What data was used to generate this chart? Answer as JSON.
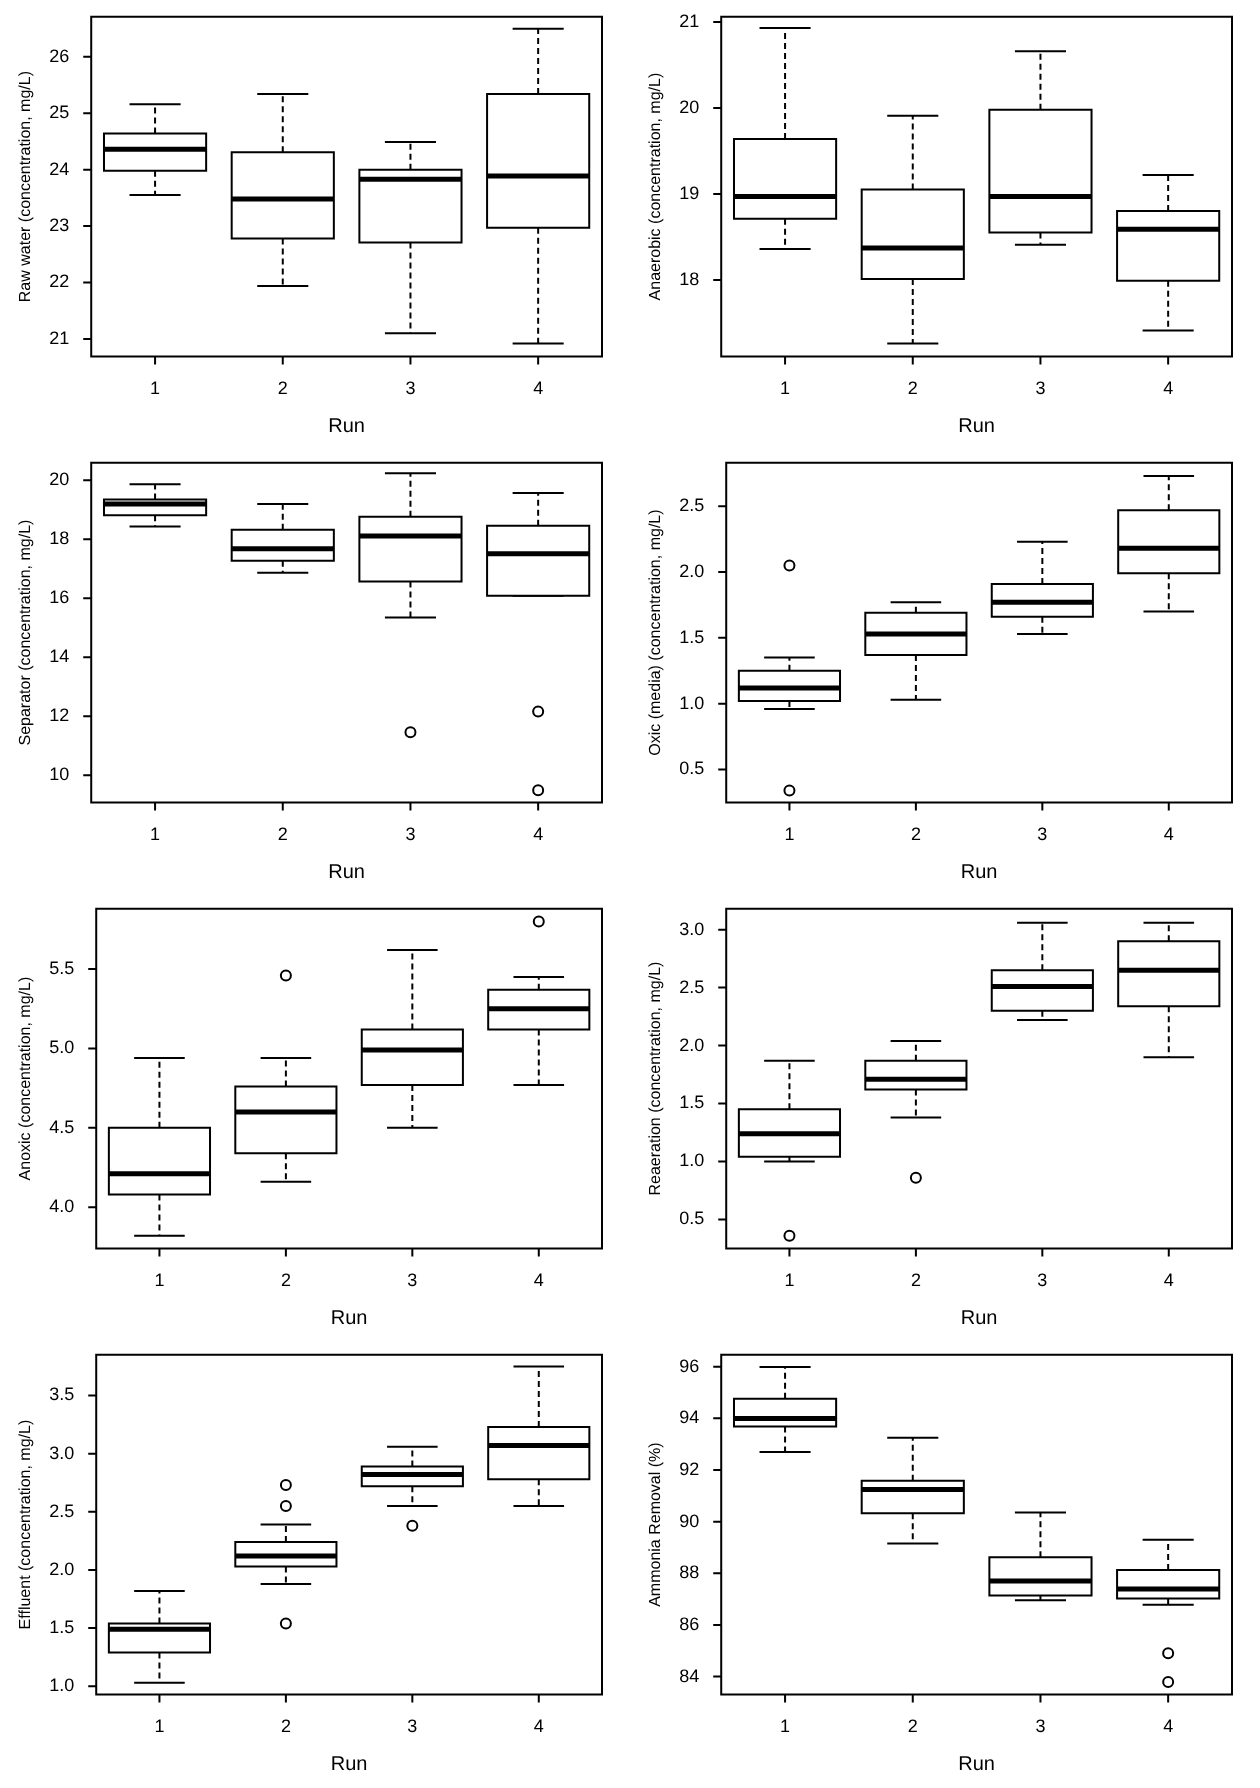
{
  "chart_data": [
    {
      "type": "box",
      "categories": [
        "1",
        "2",
        "3",
        "4"
      ],
      "xlabel": "Run",
      "ylabel": "Raw water (concentration, mg/L)",
      "ylim": [
        20.69,
        26.71
      ],
      "yticks": [
        21,
        22,
        23,
        24,
        25,
        26
      ],
      "boxes": [
        {
          "low": 23.55,
          "q1": 23.98,
          "median": 24.36,
          "q3": 24.64,
          "high": 25.16
        },
        {
          "low": 21.94,
          "q1": 22.78,
          "median": 23.48,
          "q3": 24.31,
          "high": 25.34
        },
        {
          "low": 21.1,
          "q1": 22.71,
          "median": 23.83,
          "q3": 24.0,
          "high": 24.49
        },
        {
          "low": 20.92,
          "q1": 22.97,
          "median": 23.89,
          "q3": 25.34,
          "high": 26.5
        }
      ]
    },
    {
      "type": "box",
      "categories": [
        "1",
        "2",
        "3",
        "4"
      ],
      "xlabel": "Run",
      "ylabel": "Anaerobic (concentration, mg/L)",
      "ylim": [
        17.11,
        21.06
      ],
      "yticks": [
        18,
        19,
        20,
        21
      ],
      "boxes": [
        {
          "low": 18.36,
          "q1": 18.71,
          "median": 18.97,
          "q3": 19.64,
          "high": 20.93
        },
        {
          "low": 17.26,
          "q1": 18.01,
          "median": 18.37,
          "q3": 19.05,
          "high": 19.91
        },
        {
          "low": 18.41,
          "q1": 18.55,
          "median": 18.97,
          "q3": 19.98,
          "high": 20.66
        },
        {
          "low": 17.41,
          "q1": 17.99,
          "median": 18.59,
          "q3": 18.8,
          "high": 19.22
        }
      ]
    },
    {
      "type": "box",
      "categories": [
        "1",
        "2",
        "3",
        "4"
      ],
      "xlabel": "Run",
      "ylabel": "Separator (concentration, mg/L)",
      "ylim": [
        9.08,
        20.59
      ],
      "yticks": [
        10,
        12,
        14,
        16,
        18,
        20
      ],
      "boxes": [
        {
          "low": 18.43,
          "q1": 18.81,
          "median": 19.19,
          "q3": 19.35,
          "high": 19.86
        },
        {
          "low": 16.86,
          "q1": 17.27,
          "median": 17.68,
          "q3": 18.32,
          "high": 19.19
        },
        {
          "low": 15.35,
          "q1": 16.57,
          "median": 18.11,
          "q3": 18.76,
          "high": 20.24,
          "outliers": [
            11.46
          ]
        },
        {
          "low": 16.08,
          "q1": 16.08,
          "median": 17.51,
          "q3": 18.46,
          "high": 19.57,
          "outliers": [
            12.16,
            9.49
          ]
        }
      ]
    },
    {
      "type": "box",
      "categories": [
        "1",
        "2",
        "3",
        "4"
      ],
      "xlabel": "Run",
      "ylabel": "Oxic (media) (concentration, mg/L)",
      "ylim": [
        0.25,
        2.83
      ],
      "yticks": [
        {
          "value": 0.5,
          "label": "0.5"
        },
        {
          "value": 1,
          "label": "1.0"
        },
        {
          "value": 1.5,
          "label": "1.5"
        },
        {
          "value": 2,
          "label": "2.0"
        },
        {
          "value": 2.5,
          "label": "2.5"
        }
      ],
      "boxes": [
        {
          "low": 0.96,
          "q1": 1.02,
          "median": 1.12,
          "q3": 1.25,
          "high": 1.35,
          "outliers": [
            2.05,
            0.34
          ]
        },
        {
          "low": 1.03,
          "q1": 1.37,
          "median": 1.53,
          "q3": 1.69,
          "high": 1.77
        },
        {
          "low": 1.53,
          "q1": 1.66,
          "median": 1.77,
          "q3": 1.91,
          "high": 2.23
        },
        {
          "low": 1.7,
          "q1": 1.99,
          "median": 2.18,
          "q3": 2.47,
          "high": 2.73
        }
      ]
    },
    {
      "type": "box",
      "categories": [
        "1",
        "2",
        "3",
        "4"
      ],
      "xlabel": "Run",
      "ylabel": "Anoxic (concentration, mg/L)",
      "ylim": [
        3.74,
        5.88
      ],
      "yticks": [
        {
          "value": 4,
          "label": "4.0"
        },
        {
          "value": 4.5,
          "label": "4.5"
        },
        {
          "value": 5,
          "label": "5.0"
        },
        {
          "value": 5.5,
          "label": "5.5"
        }
      ],
      "boxes": [
        {
          "low": 3.82,
          "q1": 4.08,
          "median": 4.21,
          "q3": 4.5,
          "high": 4.94
        },
        {
          "low": 4.16,
          "q1": 4.34,
          "median": 4.6,
          "q3": 4.76,
          "high": 4.94,
          "outliers": [
            5.46
          ]
        },
        {
          "low": 4.5,
          "q1": 4.77,
          "median": 4.99,
          "q3": 5.12,
          "high": 5.62
        },
        {
          "low": 4.77,
          "q1": 5.12,
          "median": 5.25,
          "q3": 5.37,
          "high": 5.45,
          "outliers": [
            5.8
          ]
        }
      ]
    },
    {
      "type": "box",
      "categories": [
        "1",
        "2",
        "3",
        "4"
      ],
      "xlabel": "Run",
      "ylabel": "Reaeration (concentration, mg/L)",
      "ylim": [
        0.25,
        3.18
      ],
      "yticks": [
        {
          "value": 0.5,
          "label": "0.5"
        },
        {
          "value": 1,
          "label": "1.0"
        },
        {
          "value": 1.5,
          "label": "1.5"
        },
        {
          "value": 2,
          "label": "2.0"
        },
        {
          "value": 2.5,
          "label": "2.5"
        },
        {
          "value": 3,
          "label": "3.0"
        }
      ],
      "boxes": [
        {
          "low": 1.0,
          "q1": 1.04,
          "median": 1.24,
          "q3": 1.45,
          "high": 1.87,
          "outliers": [
            0.36
          ]
        },
        {
          "low": 1.38,
          "q1": 1.62,
          "median": 1.71,
          "q3": 1.87,
          "high": 2.04,
          "outliers": [
            0.86
          ]
        },
        {
          "low": 2.22,
          "q1": 2.3,
          "median": 2.51,
          "q3": 2.65,
          "high": 3.06
        },
        {
          "low": 1.9,
          "q1": 2.34,
          "median": 2.65,
          "q3": 2.9,
          "high": 3.06
        }
      ]
    },
    {
      "type": "box",
      "categories": [
        "1",
        "2",
        "3",
        "4"
      ],
      "xlabel": "Run",
      "ylabel": "Effluent (concentration, mg/L)",
      "ylim": [
        0.93,
        3.85
      ],
      "yticks": [
        {
          "value": 1,
          "label": "1.0"
        },
        {
          "value": 1.5,
          "label": "1.5"
        },
        {
          "value": 2,
          "label": "2.0"
        },
        {
          "value": 2.5,
          "label": "2.5"
        },
        {
          "value": 3,
          "label": "3.0"
        },
        {
          "value": 3.5,
          "label": "3.5"
        }
      ],
      "boxes": [
        {
          "low": 1.03,
          "q1": 1.29,
          "median": 1.49,
          "q3": 1.54,
          "high": 1.82
        },
        {
          "low": 1.88,
          "q1": 2.03,
          "median": 2.12,
          "q3": 2.24,
          "high": 2.39,
          "outliers": [
            2.73,
            2.55,
            1.54
          ]
        },
        {
          "low": 2.55,
          "q1": 2.72,
          "median": 2.82,
          "q3": 2.89,
          "high": 3.06,
          "outliers": [
            2.38
          ]
        },
        {
          "low": 2.55,
          "q1": 2.78,
          "median": 3.07,
          "q3": 3.23,
          "high": 3.75
        }
      ]
    },
    {
      "type": "box",
      "categories": [
        "1",
        "2",
        "3",
        "4"
      ],
      "xlabel": "Run",
      "ylabel": "Ammonia Removal (%)",
      "ylim": [
        83.31,
        96.46
      ],
      "yticks": [
        84,
        86,
        88,
        90,
        92,
        94,
        96
      ],
      "boxes": [
        {
          "low": 92.7,
          "q1": 93.68,
          "median": 93.99,
          "q3": 94.76,
          "high": 95.99
        },
        {
          "low": 89.15,
          "q1": 90.32,
          "median": 91.24,
          "q3": 91.58,
          "high": 93.25
        },
        {
          "low": 86.96,
          "q1": 87.14,
          "median": 87.7,
          "q3": 88.62,
          "high": 90.35
        },
        {
          "low": 86.78,
          "q1": 87.02,
          "median": 87.39,
          "q3": 88.13,
          "high": 89.3,
          "outliers": [
            84.9,
            83.79
          ]
        }
      ]
    }
  ]
}
